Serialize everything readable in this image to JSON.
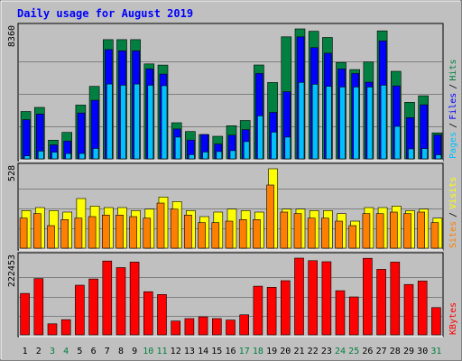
{
  "chart_data": {
    "title": "Daily usage for August 2019",
    "x": [
      "1",
      "2",
      "3",
      "4",
      "5",
      "6",
      "7",
      "8",
      "9",
      "10",
      "11",
      "12",
      "13",
      "14",
      "15",
      "16",
      "17",
      "18",
      "19",
      "20",
      "21",
      "22",
      "23",
      "24",
      "25",
      "26",
      "27",
      "28",
      "29",
      "30",
      "31"
    ],
    "weekend_days": [
      "3",
      "4",
      "10",
      "11",
      "17",
      "18",
      "24",
      "25",
      "31"
    ],
    "panels": [
      {
        "type": "bar",
        "ymax_label": "8360",
        "ymax": 8360,
        "legend": [
          {
            "name": "Pages",
            "color": "#00c0ff"
          },
          {
            "name": "Files",
            "color": "#0000ff"
          },
          {
            "name": "Hits",
            "color": "#008040"
          }
        ],
        "series": [
          {
            "name": "Hits",
            "color": "#008040",
            "values": [
              3050,
              3310,
              1200,
              1700,
              3460,
              4660,
              7670,
              7670,
              7670,
              6110,
              6030,
              2320,
              1760,
              1560,
              1450,
              2130,
              2470,
              6040,
              4910,
              7850,
              8360,
              8210,
              7810,
              6200,
              5740,
              6230,
              8230,
              5630,
              3640,
              4060,
              1670
            ]
          },
          {
            "name": "Files",
            "color": "#0000ff",
            "values": [
              2520,
              2880,
              900,
              1140,
              2950,
              3770,
              7030,
              6950,
              6950,
              5790,
              5450,
              1920,
              1210,
              1570,
              950,
              1520,
              1880,
              5490,
              2990,
              4320,
              7850,
              7150,
              6790,
              5780,
              5490,
              4930,
              7590,
              4690,
              2650,
              3480,
              1530
            ]
          },
          {
            "name": "Pages",
            "color": "#00c0ff",
            "values": [
              190,
              500,
              430,
              340,
              350,
              670,
              4810,
              4740,
              4810,
              4730,
              4700,
              1400,
              270,
              440,
              470,
              530,
              1110,
              2770,
              1720,
              1400,
              4920,
              4800,
              4660,
              4620,
              4620,
              4620,
              4740,
              2090,
              640,
              660,
              260
            ]
          }
        ]
      },
      {
        "type": "bar",
        "ymax_label": "528",
        "ymax": 528,
        "legend": [
          {
            "name": "Sites",
            "color": "#ff8000"
          },
          {
            "name": "Visits",
            "color": "#ffff00"
          }
        ],
        "series": [
          {
            "name": "Visits",
            "color": "#ffff00",
            "values": [
              250,
              270,
              250,
              240,
              330,
              280,
              270,
              270,
              250,
              260,
              340,
              310,
              250,
              210,
              240,
              260,
              250,
              240,
              528,
              260,
              260,
              250,
              250,
              230,
              180,
              270,
              270,
              280,
              250,
              260,
              200
            ]
          },
          {
            "name": "Sites",
            "color": "#ff8000",
            "values": [
              200,
              230,
              150,
              190,
              200,
              210,
              220,
              220,
              210,
              200,
              300,
              260,
              220,
              170,
              170,
              180,
              190,
              190,
              420,
              240,
              230,
              200,
              200,
              180,
              150,
              230,
              230,
              240,
              230,
              240,
              170
            ]
          }
        ]
      },
      {
        "type": "bar",
        "ymax_label": "222453",
        "ymax": 222453,
        "legend": [
          {
            "name": "KBytes",
            "color": "#ff0000"
          }
        ],
        "series": [
          {
            "name": "KBytes",
            "color": "#ff0000",
            "values": [
              120000,
              163000,
              32000,
              44000,
              144000,
              162000,
              214000,
              195000,
              211000,
              125000,
              117000,
              40000,
              47000,
              52000,
              47000,
              43000,
              58000,
              141000,
              138000,
              157000,
              222453,
              215000,
              212000,
              128000,
              110000,
              222000,
              190000,
              211000,
              146000,
              156000,
              79000
            ]
          }
        ]
      }
    ]
  }
}
